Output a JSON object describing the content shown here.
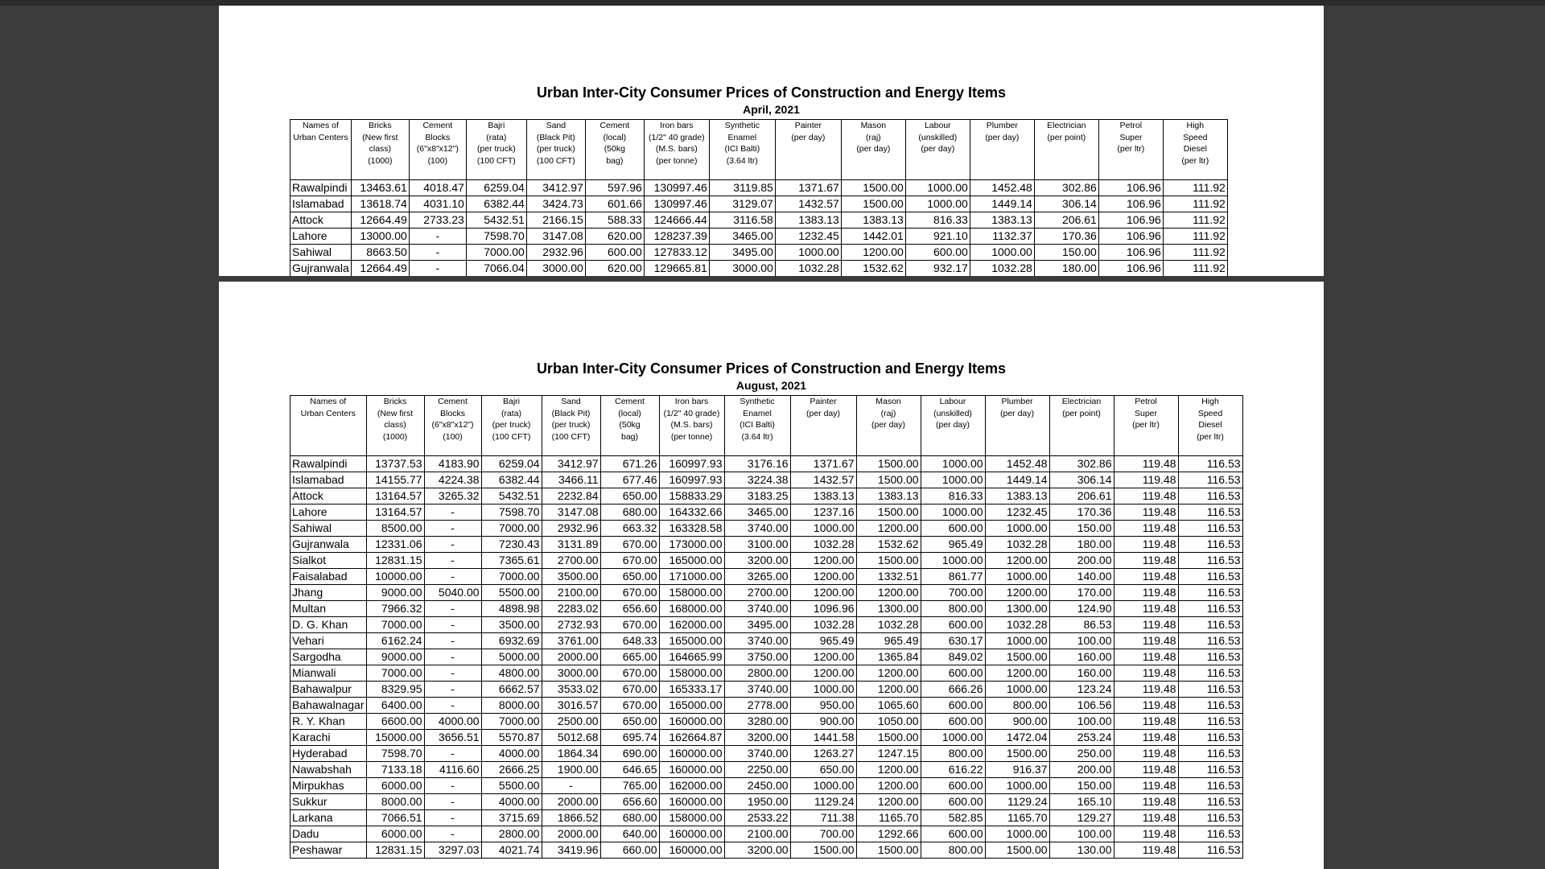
{
  "pages": [
    {
      "title": "Urban Inter-City Consumer Prices of Construction and Energy Items",
      "subtitle": "April, 2021",
      "headers": [
        {
          "lines": [
            "Names of",
            "Urban Centers"
          ]
        },
        {
          "lines": [
            "Bricks",
            "(New first",
            "class)"
          ],
          "unit": "(1000)"
        },
        {
          "lines": [
            "Cement",
            "Blocks",
            "(6\"x8\"x12\")"
          ],
          "unit": "(100)"
        },
        {
          "lines": [
            "Bajri",
            "(rata)",
            "(per truck)"
          ],
          "unit": "(100 CFT)"
        },
        {
          "lines": [
            "Sand",
            "(Black Pit)",
            "(per truck)"
          ],
          "unit": "(100 CFT)"
        },
        {
          "lines": [
            "Cement",
            "(local)",
            "(50kg"
          ],
          "unit": "bag)"
        },
        {
          "lines": [
            "Iron bars",
            "(1/2\" 40 grade)",
            "(M.S. bars)"
          ],
          "unit": "(per tonne)"
        },
        {
          "lines": [
            "Synthetic",
            "Enamel",
            "(ICI Balti)"
          ],
          "unit": "(3.64 ltr)"
        },
        {
          "lines": [
            "Painter"
          ],
          "unit": "(per day)"
        },
        {
          "lines": [
            "Mason",
            "(raj)"
          ],
          "unit": "(per day)"
        },
        {
          "lines": [
            "Labour",
            "(unskilled)"
          ],
          "unit": "(per day)"
        },
        {
          "lines": [
            "Plumber"
          ],
          "unit": "(per day)"
        },
        {
          "lines": [
            "Electrician"
          ],
          "unit": "(per point)"
        },
        {
          "lines": [
            "Petrol",
            "Super"
          ],
          "unit": "(per ltr)"
        },
        {
          "lines": [
            "High",
            "Speed",
            "Diesel"
          ],
          "unit": "(per ltr)"
        }
      ],
      "rows": [
        [
          "Rawalpindi",
          "13463.61",
          "4018.47",
          "6259.04",
          "3412.97",
          "597.96",
          "130997.46",
          "3119.85",
          "1371.67",
          "1500.00",
          "1000.00",
          "1452.48",
          "302.86",
          "106.96",
          "111.92"
        ],
        [
          "Islamabad",
          "13618.74",
          "4031.10",
          "6382.44",
          "3424.73",
          "601.66",
          "130997.46",
          "3129.07",
          "1432.57",
          "1500.00",
          "1000.00",
          "1449.14",
          "306.14",
          "106.96",
          "111.92"
        ],
        [
          "Attock",
          "12664.49",
          "2733.23",
          "5432.51",
          "2166.15",
          "588.33",
          "124666.44",
          "3116.58",
          "1383.13",
          "1383.13",
          "816.33",
          "1383.13",
          "206.61",
          "106.96",
          "111.92"
        ],
        [
          "Lahore",
          "13000.00",
          "-",
          "7598.70",
          "3147.08",
          "620.00",
          "128237.39",
          "3465.00",
          "1232.45",
          "1442.01",
          "921.10",
          "1132.37",
          "170.36",
          "106.96",
          "111.92"
        ],
        [
          "Sahiwal",
          "8663.50",
          "-",
          "7000.00",
          "2932.96",
          "600.00",
          "127833.12",
          "3495.00",
          "1000.00",
          "1200.00",
          "600.00",
          "1000.00",
          "150.00",
          "106.96",
          "111.92"
        ],
        [
          "Gujranwala",
          "12664.49",
          "-",
          "7066.04",
          "3000.00",
          "620.00",
          "129665.81",
          "3000.00",
          "1032.28",
          "1532.62",
          "932.17",
          "1032.28",
          "180.00",
          "106.96",
          "111.92"
        ]
      ]
    },
    {
      "title": "Urban Inter-City Consumer Prices of Construction and Energy Items",
      "subtitle": "August, 2021",
      "headers": [
        {
          "lines": [
            "Names of",
            "Urban Centers"
          ]
        },
        {
          "lines": [
            "Bricks",
            "(New first",
            "class)"
          ],
          "unit": "(1000)"
        },
        {
          "lines": [
            "Cement",
            "Blocks",
            "(6\"x8\"x12\")"
          ],
          "unit": "(100)"
        },
        {
          "lines": [
            "Bajri",
            "(rata)",
            "(per truck)"
          ],
          "unit": "(100 CFT)"
        },
        {
          "lines": [
            "Sand",
            "(Black Pit)",
            "(per truck)"
          ],
          "unit": "(100 CFT)"
        },
        {
          "lines": [
            "Cement",
            "(local)",
            "(50kg"
          ],
          "unit": "bag)"
        },
        {
          "lines": [
            "Iron bars",
            "(1/2\" 40 grade)",
            "(M.S. bars)"
          ],
          "unit": "(per tonne)"
        },
        {
          "lines": [
            "Synthetic",
            "Enamel",
            "(ICI Balti)"
          ],
          "unit": "(3.64 ltr)"
        },
        {
          "lines": [
            "Painter"
          ],
          "unit": "(per day)"
        },
        {
          "lines": [
            "Mason",
            "(raj)"
          ],
          "unit": "(per day)"
        },
        {
          "lines": [
            "Labour",
            "(unskilled)"
          ],
          "unit": "(per day)"
        },
        {
          "lines": [
            "Plumber"
          ],
          "unit": "(per day)"
        },
        {
          "lines": [
            "Electrician"
          ],
          "unit": "(per point)"
        },
        {
          "lines": [
            "Petrol",
            "Super"
          ],
          "unit": "(per ltr)"
        },
        {
          "lines": [
            "High",
            "Speed",
            "Diesel"
          ],
          "unit": "(per ltr)"
        }
      ],
      "rows": [
        [
          "Rawalpindi",
          "13737.53",
          "4183.90",
          "6259.04",
          "3412.97",
          "671.26",
          "160997.93",
          "3176.16",
          "1371.67",
          "1500.00",
          "1000.00",
          "1452.48",
          "302.86",
          "119.48",
          "116.53"
        ],
        [
          "Islamabad",
          "14155.77",
          "4224.38",
          "6382.44",
          "3466.11",
          "677.46",
          "160997.93",
          "3224.38",
          "1432.57",
          "1500.00",
          "1000.00",
          "1449.14",
          "306.14",
          "119.48",
          "116.53"
        ],
        [
          "Attock",
          "13164.57",
          "3265.32",
          "5432.51",
          "2232.84",
          "650.00",
          "158833.29",
          "3183.25",
          "1383.13",
          "1383.13",
          "816.33",
          "1383.13",
          "206.61",
          "119.48",
          "116.53"
        ],
        [
          "Lahore",
          "13164.57",
          "-",
          "7598.70",
          "3147.08",
          "680.00",
          "164332.66",
          "3465.00",
          "1237.16",
          "1500.00",
          "1000.00",
          "1232.45",
          "170.36",
          "119.48",
          "116.53"
        ],
        [
          "Sahiwal",
          "8500.00",
          "-",
          "7000.00",
          "2932.96",
          "663.32",
          "163328.58",
          "3740.00",
          "1000.00",
          "1200.00",
          "600.00",
          "1000.00",
          "150.00",
          "119.48",
          "116.53"
        ],
        [
          "Gujranwala",
          "12331.06",
          "-",
          "7230.43",
          "3131.89",
          "670.00",
          "173000.00",
          "3100.00",
          "1032.28",
          "1532.62",
          "965.49",
          "1032.28",
          "180.00",
          "119.48",
          "116.53"
        ],
        [
          "Sialkot",
          "12831.15",
          "-",
          "7365.61",
          "2700.00",
          "670.00",
          "165000.00",
          "3200.00",
          "1200.00",
          "1500.00",
          "1000.00",
          "1200.00",
          "200.00",
          "119.48",
          "116.53"
        ],
        [
          "Faisalabad",
          "10000.00",
          "-",
          "7000.00",
          "3500.00",
          "650.00",
          "171000.00",
          "3265.00",
          "1200.00",
          "1332.51",
          "861.77",
          "1000.00",
          "140.00",
          "119.48",
          "116.53"
        ],
        [
          "Jhang",
          "9000.00",
          "5040.00",
          "5500.00",
          "2100.00",
          "670.00",
          "158000.00",
          "2700.00",
          "1200.00",
          "1200.00",
          "700.00",
          "1200.00",
          "170.00",
          "119.48",
          "116.53"
        ],
        [
          "Multan",
          "7966.32",
          "-",
          "4898.98",
          "2283.02",
          "656.60",
          "168000.00",
          "3740.00",
          "1096.96",
          "1300.00",
          "800.00",
          "1300.00",
          "124.90",
          "119.48",
          "116.53"
        ],
        [
          "D. G. Khan",
          "7000.00",
          "-",
          "3500.00",
          "2732.93",
          "670.00",
          "162000.00",
          "3495.00",
          "1032.28",
          "1032.28",
          "600.00",
          "1032.28",
          "86.53",
          "119.48",
          "116.53"
        ],
        [
          "Vehari",
          "6162.24",
          "-",
          "6932.69",
          "3761.00",
          "648.33",
          "165000.00",
          "3740.00",
          "965.49",
          "965.49",
          "630.17",
          "1000.00",
          "100.00",
          "119.48",
          "116.53"
        ],
        [
          "Sargodha",
          "9000.00",
          "-",
          "5000.00",
          "2000.00",
          "665.00",
          "164665.99",
          "3750.00",
          "1200.00",
          "1365.84",
          "849.02",
          "1500.00",
          "160.00",
          "119.48",
          "116.53"
        ],
        [
          "Mianwali",
          "7000.00",
          "-",
          "4800.00",
          "3000.00",
          "670.00",
          "158000.00",
          "2800.00",
          "1200.00",
          "1200.00",
          "600.00",
          "1200.00",
          "160.00",
          "119.48",
          "116.53"
        ],
        [
          "Bahawalpur",
          "8329.95",
          "-",
          "6662.57",
          "3533.02",
          "670.00",
          "165333.17",
          "3740.00",
          "1000.00",
          "1200.00",
          "666.26",
          "1000.00",
          "123.24",
          "119.48",
          "116.53"
        ],
        [
          "Bahawalnagar",
          "6400.00",
          "-",
          "8000.00",
          "3016.57",
          "670.00",
          "165000.00",
          "2778.00",
          "950.00",
          "1065.60",
          "600.00",
          "800.00",
          "106.56",
          "119.48",
          "116.53"
        ],
        [
          "R. Y. Khan",
          "6600.00",
          "4000.00",
          "7000.00",
          "2500.00",
          "650.00",
          "160000.00",
          "3280.00",
          "900.00",
          "1050.00",
          "600.00",
          "900.00",
          "100.00",
          "119.48",
          "116.53"
        ],
        [
          "Karachi",
          "15000.00",
          "3656.51",
          "5570.87",
          "5012.68",
          "695.74",
          "162664.87",
          "3200.00",
          "1441.58",
          "1500.00",
          "1000.00",
          "1472.04",
          "253.24",
          "119.48",
          "116.53"
        ],
        [
          "Hyderabad",
          "7598.70",
          "-",
          "4000.00",
          "1864.34",
          "690.00",
          "160000.00",
          "3740.00",
          "1263.27",
          "1247.15",
          "800.00",
          "1500.00",
          "250.00",
          "119.48",
          "116.53"
        ],
        [
          "Nawabshah",
          "7133.18",
          "4116.60",
          "2666.25",
          "1900.00",
          "646.65",
          "160000.00",
          "2250.00",
          "650.00",
          "1200.00",
          "616.22",
          "916.37",
          "200.00",
          "119.48",
          "116.53"
        ],
        [
          "Mirpukhas",
          "6000.00",
          "-",
          "5500.00",
          "-",
          "765.00",
          "162000.00",
          "2450.00",
          "1000.00",
          "1200.00",
          "600.00",
          "1000.00",
          "150.00",
          "119.48",
          "116.53"
        ],
        [
          "Sukkur",
          "8000.00",
          "-",
          "4000.00",
          "2000.00",
          "656.60",
          "160000.00",
          "1950.00",
          "1129.24",
          "1200.00",
          "600.00",
          "1129.24",
          "165.10",
          "119.48",
          "116.53"
        ],
        [
          "Larkana",
          "7066.51",
          "-",
          "3715.69",
          "1866.52",
          "680.00",
          "158000.00",
          "2533.22",
          "711.38",
          "1165.70",
          "582.85",
          "1165.70",
          "129.27",
          "119.48",
          "116.53"
        ],
        [
          "Dadu",
          "6000.00",
          "-",
          "2800.00",
          "2000.00",
          "640.00",
          "160000.00",
          "2100.00",
          "700.00",
          "1292.66",
          "600.00",
          "1000.00",
          "100.00",
          "119.48",
          "116.53"
        ],
        [
          "Peshawar",
          "12831.15",
          "3297.03",
          "4021.74",
          "3419.96",
          "660.00",
          "160000.00",
          "3200.00",
          "1500.00",
          "1500.00",
          "800.00",
          "1500.00",
          "130.00",
          "119.48",
          "116.53"
        ]
      ]
    }
  ]
}
